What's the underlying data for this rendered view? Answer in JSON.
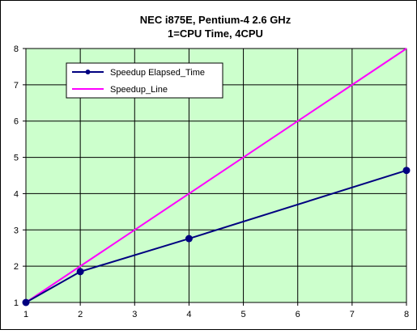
{
  "chart_data": {
    "type": "line",
    "title": "NEC i875E, Pentium-4 2.6 GHz",
    "subtitle": "1=CPU Time, 4CPU",
    "xlabel": "",
    "ylabel": "",
    "xlim": [
      1,
      8
    ],
    "ylim": [
      1,
      8
    ],
    "x_ticks": [
      "1",
      "2",
      "3",
      "4",
      "5",
      "6",
      "7",
      "8"
    ],
    "y_ticks": [
      "1",
      "2",
      "3",
      "4",
      "5",
      "6",
      "7",
      "8"
    ],
    "grid": true,
    "legend_position": "top-left",
    "plot_background": "#ccffcc",
    "series": [
      {
        "name": "Speedup Elapsed_Time",
        "color": "#000080",
        "marker": "circle",
        "points": [
          {
            "x": 1,
            "y": 1.0
          },
          {
            "x": 2,
            "y": 1.85
          },
          {
            "x": 4,
            "y": 2.76
          },
          {
            "x": 8,
            "y": 4.64
          }
        ]
      },
      {
        "name": "Speedup_Line",
        "color": "#ff00ff",
        "marker": "none",
        "points": [
          {
            "x": 1,
            "y": 1
          },
          {
            "x": 2,
            "y": 2
          },
          {
            "x": 3,
            "y": 3
          },
          {
            "x": 4,
            "y": 4
          },
          {
            "x": 5,
            "y": 5
          },
          {
            "x": 6,
            "y": 6
          },
          {
            "x": 7,
            "y": 7
          },
          {
            "x": 8,
            "y": 8
          }
        ]
      }
    ]
  }
}
